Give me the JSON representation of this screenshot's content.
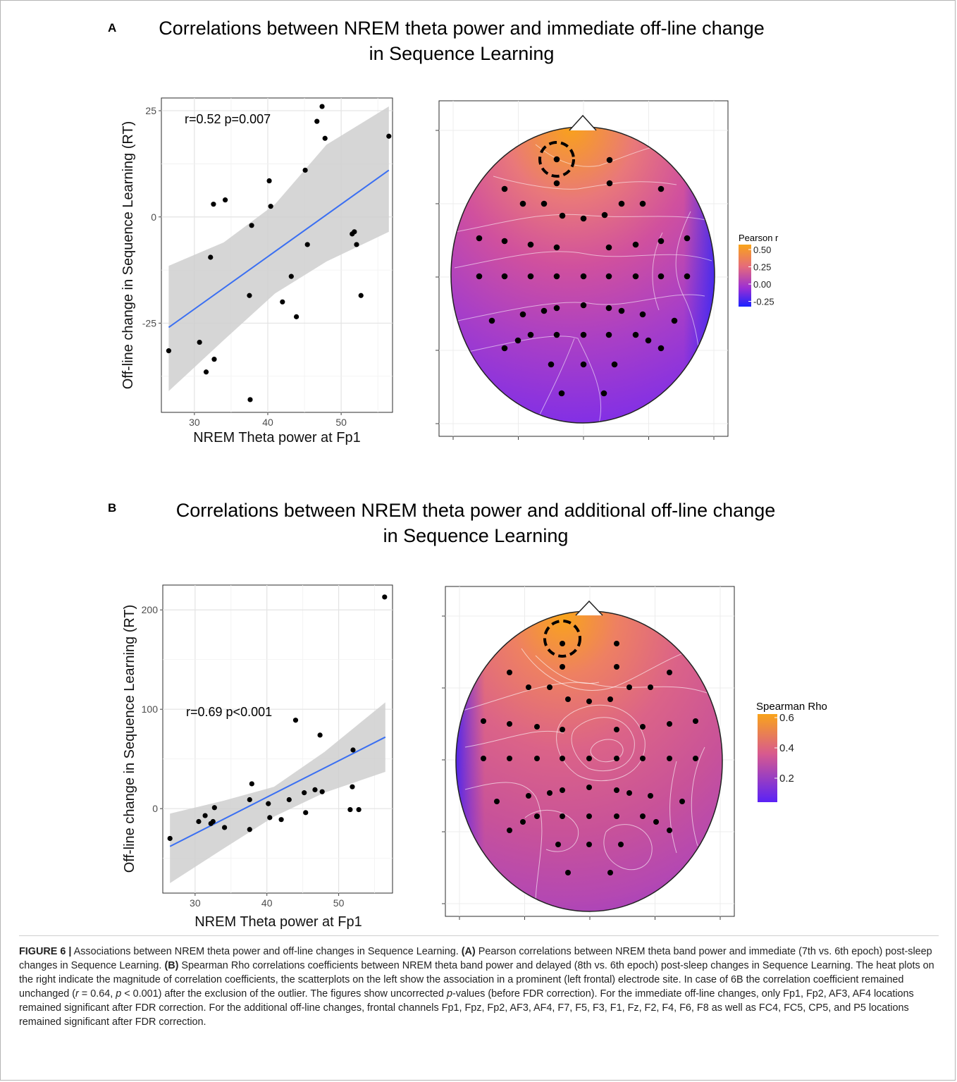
{
  "figure": {
    "panelA": {
      "letter": "A",
      "title_line1": "Correlations between NREM theta power and immediate off-line change",
      "title_line2": "in Sequence Learning",
      "stat_text": "r=0.52 p=0.007",
      "legend_title": "Pearson r",
      "legend_ticks": [
        "0.50",
        "0.25",
        "0.00",
        "-0.25"
      ],
      "legend_colors": [
        "#f9a41a",
        "#e66c79",
        "#9b2fd4",
        "#1a22ff"
      ]
    },
    "panelB": {
      "letter": "B",
      "title_line1": "Correlations between NREM theta power and additional off-line change",
      "title_line2": "in Sequence Learning",
      "stat_text": "r=0.69 p<0.001",
      "legend_title": "Spearman Rho",
      "legend_ticks": [
        "0.6",
        "0.4",
        "0.2"
      ],
      "legend_colors": [
        "#f9a41a",
        "#d85a8e",
        "#6a22f2"
      ]
    }
  },
  "chart_data": [
    {
      "type": "scatter",
      "panel": "A",
      "xlabel": "NREM Theta power at Fp1",
      "ylabel": "Off-line change in Sequence Learning (RT)",
      "xlim": [
        25.5,
        57
      ],
      "ylim": [
        -46,
        28
      ],
      "xticks": [
        30,
        40,
        50
      ],
      "yticks": [
        -25,
        0,
        25
      ],
      "annotation": "r=0.52 p=0.007",
      "grid": true,
      "points": [
        [
          26.5,
          -31.5
        ],
        [
          30.7,
          -29.5
        ],
        [
          31.6,
          -36.5
        ],
        [
          32.2,
          -9.5
        ],
        [
          32.6,
          3
        ],
        [
          32.7,
          -33.5
        ],
        [
          34.2,
          4
        ],
        [
          37.5,
          -18.5
        ],
        [
          37.8,
          -2
        ],
        [
          37.6,
          -43
        ],
        [
          40.2,
          8.5
        ],
        [
          40.4,
          2.5
        ],
        [
          42,
          -20
        ],
        [
          43.2,
          -14
        ],
        [
          43.9,
          -23.5
        ],
        [
          45.1,
          11
        ],
        [
          45.4,
          -6.5
        ],
        [
          46.7,
          22.5
        ],
        [
          47.4,
          26
        ],
        [
          47.8,
          18.5
        ],
        [
          51.5,
          -4
        ],
        [
          51.8,
          -3.5
        ],
        [
          52.1,
          -6.5
        ],
        [
          52.7,
          -18.5
        ],
        [
          56.5,
          19
        ]
      ],
      "fit_line": {
        "x": [
          26.5,
          56.5
        ],
        "y": [
          -26,
          11
        ]
      },
      "confidence_band": {
        "x": [
          26.5,
          34,
          41,
          48,
          56.5
        ],
        "upper": [
          -11.5,
          -6,
          3,
          17,
          26
        ],
        "lower": [
          -41,
          -29,
          -18,
          -10.5,
          -3.5
        ]
      }
    },
    {
      "type": "heatmap",
      "panel": "A",
      "description": "scalp topography of Pearson r",
      "colorbar": {
        "label": "Pearson r",
        "ticks": [
          0.5,
          0.25,
          0.0,
          -0.25
        ],
        "range": [
          -0.3,
          0.55
        ]
      }
    },
    {
      "type": "scatter",
      "panel": "B",
      "xlabel": "NREM Theta power at Fp1",
      "ylabel": "Off-line change in Sequence Learning (RT)",
      "xlim": [
        25.5,
        57.5
      ],
      "ylim": [
        -85,
        225
      ],
      "xticks": [
        30,
        40,
        50
      ],
      "yticks": [
        0,
        100,
        200
      ],
      "annotation": "r=0.69 p<0.001",
      "grid": true,
      "points": [
        [
          26.5,
          -30
        ],
        [
          30.5,
          -13
        ],
        [
          31.4,
          -7
        ],
        [
          32.2,
          -15
        ],
        [
          32.5,
          -13
        ],
        [
          32.7,
          1
        ],
        [
          34.1,
          -19
        ],
        [
          37.6,
          -21
        ],
        [
          37.6,
          9
        ],
        [
          37.9,
          25
        ],
        [
          40.2,
          5
        ],
        [
          40.4,
          -9
        ],
        [
          42,
          -11
        ],
        [
          43.1,
          9
        ],
        [
          44,
          89
        ],
        [
          45.2,
          16
        ],
        [
          45.4,
          -4
        ],
        [
          46.7,
          19
        ],
        [
          47.4,
          74
        ],
        [
          47.7,
          17
        ],
        [
          51.6,
          -1
        ],
        [
          51.9,
          22
        ],
        [
          52,
          59
        ],
        [
          52.8,
          -1
        ],
        [
          56.4,
          213
        ]
      ],
      "fit_line": {
        "x": [
          26.5,
          56.5
        ],
        "y": [
          -38,
          72
        ]
      },
      "confidence_band": {
        "x": [
          26.5,
          34,
          41,
          48,
          56.5
        ],
        "upper": [
          -5,
          8,
          22,
          57,
          107
        ],
        "lower": [
          -75,
          -40,
          -8,
          16,
          37
        ]
      }
    },
    {
      "type": "heatmap",
      "panel": "B",
      "description": "scalp topography of Spearman Rho",
      "colorbar": {
        "label": "Spearman Rho",
        "ticks": [
          0.6,
          0.4,
          0.2
        ],
        "range": [
          0.1,
          0.62
        ]
      }
    }
  ],
  "caption": {
    "figure_label": "FIGURE 6 |",
    "s1": " Associations between NREM theta power and off-line changes in Sequence Learning. ",
    "ref_a": "(A)",
    "s2": " Pearson correlations between NREM theta band power and immediate (7th vs. 6th epoch) post-sleep changes in Sequence Learning. ",
    "ref_b": "(B)",
    "s3": " Spearman Rho correlations coefficients between NREM theta band power and delayed (8th vs. 6th epoch) post-sleep changes in Sequence Learning. The heat plots on the right indicate the magnitude of correlation coefficients, the scatterplots on the left show the association in a prominent (left frontal) electrode site. In case of 6B the correlation coefficient remained unchanged (",
    "r_sym": "r",
    "s4": " = 0.64, ",
    "p_sym": "p",
    "s5": " < 0.001) after the exclusion of the outlier. The figures show uncorrected ",
    "p_sym2": "p",
    "s6": "-values (before FDR correction). For the immediate off-line changes, only Fp1, Fp2, AF3, AF4 locations remained significant after FDR correction. For the additional off-line changes, frontal channels Fp1, Fpz, Fp2, AF3, AF4, F7, F5, F3, F1, Fz, F2, F4, F6, F8 as well as FC4, FC5, CP5, and P5 locations remained significant after FDR correction."
  }
}
